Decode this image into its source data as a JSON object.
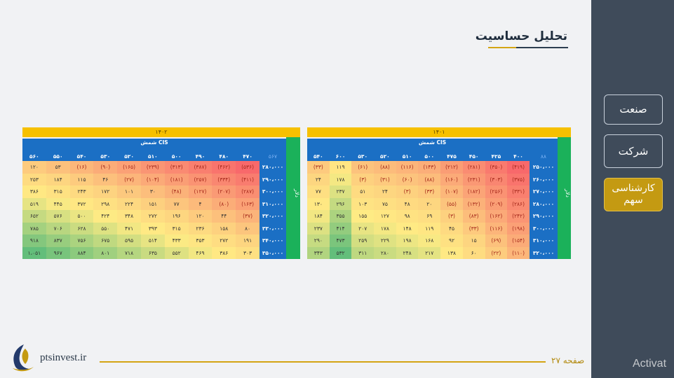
{
  "sidebar": {
    "items": [
      {
        "label": "صنعت",
        "active": false
      },
      {
        "label": "شرکت",
        "active": false
      },
      {
        "label": "کارشناسی سهم",
        "active": true
      }
    ]
  },
  "page": {
    "title": "تحلیل حساسیت",
    "page_label": "صفحه ۲۷",
    "site": "ptsinvest.ir",
    "watermark": "Activat"
  },
  "tables": [
    {
      "year": "۱۴۰۲",
      "header_title": "شمش CIS",
      "row_axis_label": "دلار",
      "corner": "۵۶۷",
      "columns": [
        "۴۷۰",
        "۴۸۰",
        "۴۹۰",
        "۵۰۰",
        "۵۱۰",
        "۵۲۰",
        "۵۳۰",
        "۵۴۰",
        "۵۵۰",
        "۵۶۰"
      ],
      "rows": [
        {
          "label": "۲۸۰،۰۰۰",
          "values": [
            "(۵۳۶)",
            "(۴۶۲)",
            "(۳۸۷)",
            "(۳۱۳)",
            "(۲۳۹)",
            "(۱۶۵)",
            "(۹۰)",
            "(۱۶)",
            "۵۳",
            "۱۲۰"
          ]
        },
        {
          "label": "۲۹۰،۰۰۰",
          "values": [
            "(۴۱۱)",
            "(۳۳۴)",
            "(۲۵۷)",
            "(۱۸۱)",
            "(۱۰۴)",
            "(۲۷)",
            "۴۶",
            "۱۱۵",
            "۱۸۴",
            "۲۵۳"
          ]
        },
        {
          "label": "۳۰۰،۰۰۰",
          "values": [
            "(۲۸۷)",
            "(۲۰۷)",
            "(۱۲۷)",
            "(۴۸)",
            "۳۰",
            "۱۰۱",
            "۱۷۲",
            "۲۴۳",
            "۳۱۵",
            "۳۸۶"
          ]
        },
        {
          "label": "۳۱۰،۰۰۰",
          "values": [
            "(۱۶۳)",
            "(۸۰)",
            "۴",
            "۷۷",
            "۱۵۱",
            "۲۲۴",
            "۲۹۸",
            "۳۷۲",
            "۴۴۵",
            "۵۱۹"
          ]
        },
        {
          "label": "۳۲۰،۰۰۰",
          "values": [
            "(۳۷)",
            "۴۴",
            "۱۲۰",
            "۱۹۶",
            "۲۷۲",
            "۳۴۸",
            "۴۲۴",
            "۵۰۰",
            "۵۷۶",
            "۶۵۲"
          ]
        },
        {
          "label": "۳۳۰،۰۰۰",
          "values": [
            "۸۰",
            "۱۵۸",
            "۲۳۶",
            "۳۱۵",
            "۳۹۳",
            "۴۷۱",
            "۵۵۰",
            "۶۲۸",
            "۷۰۶",
            "۷۸۵"
          ]
        },
        {
          "label": "۳۴۰،۰۰۰",
          "values": [
            "۱۹۱",
            "۲۷۲",
            "۳۵۳",
            "۴۳۳",
            "۵۱۴",
            "۵۹۵",
            "۶۷۵",
            "۷۵۶",
            "۸۳۷",
            "۹۱۸"
          ]
        },
        {
          "label": "۳۵۰،۰۰۰",
          "values": [
            "۳۰۳",
            "۳۸۶",
            "۴۶۹",
            "۵۵۲",
            "۶۳۵",
            "۷۱۸",
            "۸۰۱",
            "۸۸۴",
            "۹۶۷",
            "۱،۰۵۱"
          ]
        }
      ]
    },
    {
      "year": "۱۴۰۱",
      "header_title": "شمش CIS",
      "row_axis_label": "دلار",
      "corner": "۸۸",
      "columns": [
        "۴۰۰",
        "۴۲۵",
        "۴۵۰",
        "۴۷۵",
        "۵۰۰",
        "۵۱۰",
        "۵۲۰",
        "۵۳۰",
        "۶۰۰",
        "۵۴۰"
      ],
      "rows": [
        {
          "label": "۲۵۰،۰۰۰",
          "values": [
            "(۴۱۹)",
            "(۳۵۰)",
            "(۲۸۱)",
            "(۲۱۲)",
            "(۱۴۳)",
            "(۱۱۶)",
            "(۸۸)",
            "(۶۱)",
            "۱۱۹",
            "(۳۳)"
          ]
        },
        {
          "label": "۲۶۰،۰۰۰",
          "values": [
            "(۳۷۵)",
            "(۳۰۳)",
            "(۲۳۱)",
            "(۱۶۰)",
            "(۸۸)",
            "(۶۰)",
            "(۳۱)",
            "(۳)",
            "۱۷۸",
            "۲۴"
          ]
        },
        {
          "label": "۲۷۰،۰۰۰",
          "values": [
            "(۳۳۱)",
            "(۲۵۶)",
            "(۱۸۲)",
            "(۱۰۷)",
            "(۳۳)",
            "(۳)",
            "۲۴",
            "۵۱",
            "۲۳۷",
            "۷۷"
          ]
        },
        {
          "label": "۲۸۰،۰۰۰",
          "values": [
            "(۲۸۶)",
            "(۲۰۹)",
            "(۱۳۲)",
            "(۵۵)",
            "۲۰",
            "۴۸",
            "۷۵",
            "۱۰۳",
            "۲۹۶",
            "۱۳۰"
          ]
        },
        {
          "label": "۲۹۰،۰۰۰",
          "values": [
            "(۲۴۲)",
            "(۱۶۲)",
            "(۸۳)",
            "(۳)",
            "۶۹",
            "۹۸",
            "۱۲۷",
            "۱۵۵",
            "۳۵۵",
            "۱۸۴"
          ]
        },
        {
          "label": "۳۰۰،۰۰۰",
          "values": [
            "(۱۹۸)",
            "(۱۱۶)",
            "(۳۳)",
            "۴۵",
            "۱۱۹",
            "۱۴۸",
            "۱۷۸",
            "۲۰۷",
            "۴۱۴",
            "۲۳۷"
          ]
        },
        {
          "label": "۳۱۰،۰۰۰",
          "values": [
            "(۱۵۴)",
            "(۶۹)",
            "۱۵",
            "۹۲",
            "۱۶۸",
            "۱۹۸",
            "۲۲۹",
            "۲۵۹",
            "۴۷۳",
            "۲۹۰"
          ]
        },
        {
          "label": "۳۲۰،۰۰۰",
          "values": [
            "(۱۱۰)",
            "(۲۲)",
            "۶۰",
            "۱۳۸",
            "۲۱۷",
            "۲۴۸",
            "۲۸۰",
            "۳۱۱",
            "۵۳۲",
            "۳۴۳"
          ]
        }
      ]
    }
  ],
  "colors": {
    "header_blue": "#1b6fc4",
    "year_yellow": "#f6c000",
    "axis_green": "#1bb15a",
    "accent_gold": "#d4a514",
    "sidebar": "#3f4b5a"
  }
}
